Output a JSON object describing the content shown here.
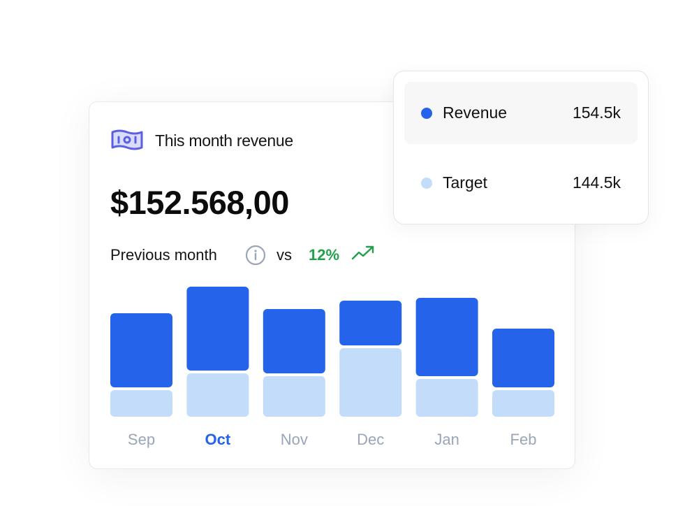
{
  "card": {
    "title": "This month revenue",
    "amount": "$152.568,00",
    "comparison_label": "Previous month",
    "vs_label": "vs",
    "change_percent": "12%",
    "icons": {
      "title": "money-bill-icon",
      "info": "info-icon",
      "trend": "trending-up-icon"
    }
  },
  "tooltip": {
    "items": [
      {
        "label": "Revenue",
        "value": "154.5k",
        "color": "#2563eb"
      },
      {
        "label": "Target",
        "value": "144.5k",
        "color": "#c2dcfa"
      }
    ]
  },
  "colors": {
    "revenue": "#2563eb",
    "target": "#c2dcfa",
    "positive": "#22a04b",
    "axis_label": "#9aa5b8",
    "selected_label": "#2563eb"
  },
  "chart_data": {
    "type": "bar",
    "stacked": true,
    "categories": [
      "Sep",
      "Oct",
      "Nov",
      "Dec",
      "Jan",
      "Feb"
    ],
    "selected_category": "Oct",
    "series": [
      {
        "name": "Target",
        "values": [
          38,
          62,
          58,
          98,
          54,
          38
        ]
      },
      {
        "name": "Revenue",
        "values": [
          106,
          120,
          92,
          64,
          112,
          84
        ]
      }
    ],
    "ylim": [
      0,
      190
    ],
    "grid": false,
    "legend": "none"
  }
}
